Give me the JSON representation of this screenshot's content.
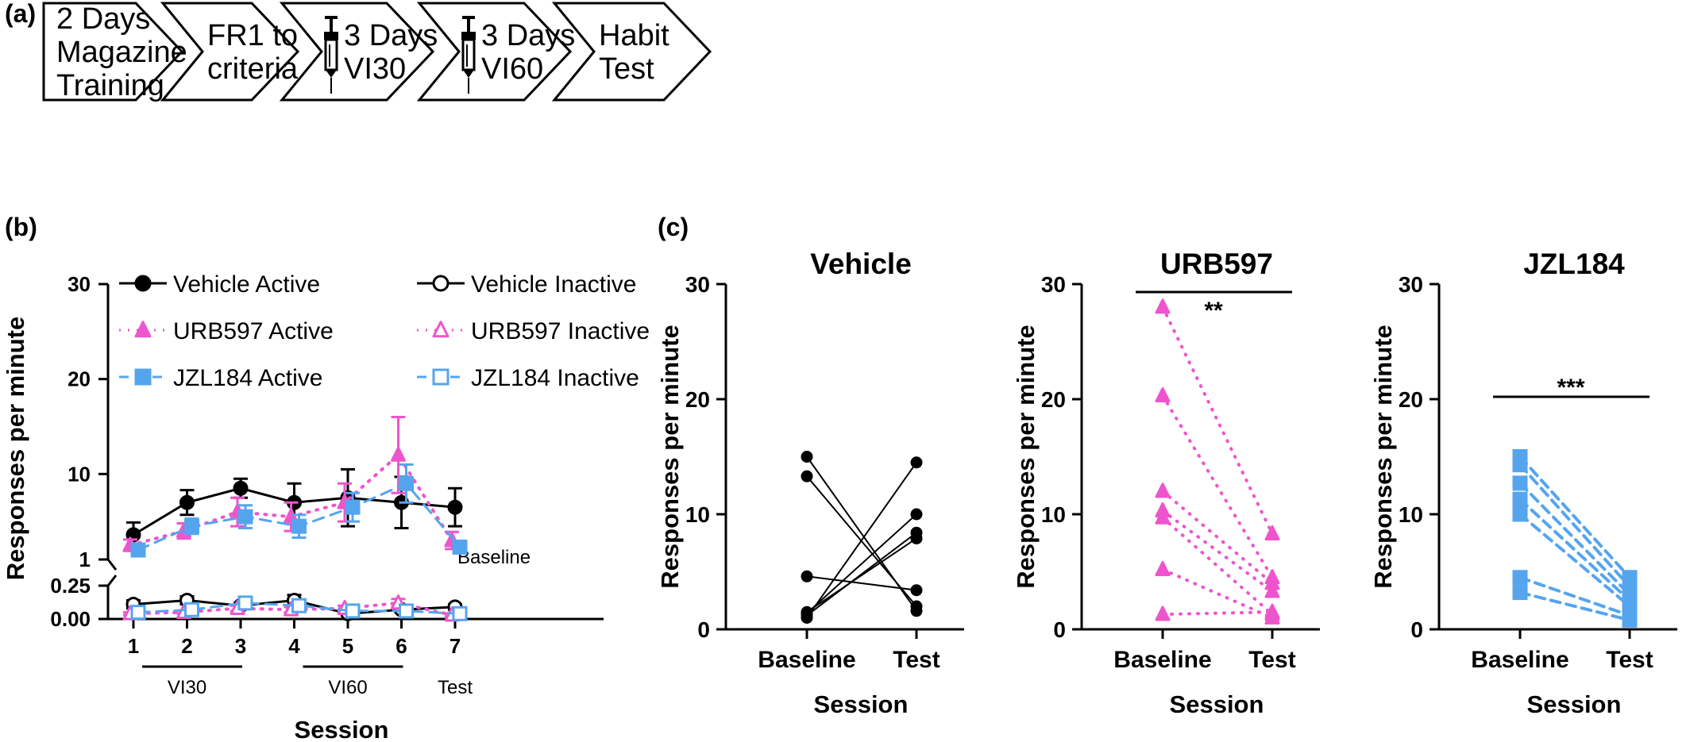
{
  "panels": {
    "a": "(a)",
    "b": "(b)",
    "c": "(c)"
  },
  "colors": {
    "vehicle": "#000000",
    "urb597": "#ee55cc",
    "jzl184": "#55a5ee"
  },
  "timeline": {
    "steps": [
      {
        "lines": [
          "2 Days",
          "Magazine",
          "Training"
        ],
        "syringe": false
      },
      {
        "lines": [
          "FR1 to",
          "criteria"
        ],
        "syringe": false
      },
      {
        "lines": [
          "3 Days",
          "VI30"
        ],
        "syringe": true
      },
      {
        "lines": [
          "3 Days",
          "VI60"
        ],
        "syringe": true
      },
      {
        "lines": [
          "Habit",
          "Test"
        ],
        "syringe": false
      }
    ]
  },
  "chart_data": [
    {
      "id": "b",
      "type": "line",
      "xlabel": "Session",
      "ylabel": "Responses per minute",
      "x": [
        1,
        2,
        3,
        4,
        5,
        6,
        7
      ],
      "x_ticks": [
        "1",
        "2",
        "3",
        "4",
        "5",
        "6",
        "7"
      ],
      "y_axis_upper": {
        "ylim": [
          1,
          30
        ],
        "ticks": [
          "1",
          "10",
          "20",
          "30"
        ]
      },
      "y_axis_lower": {
        "ylim": [
          0,
          0.25
        ],
        "ticks": [
          "0.00",
          "0.25"
        ]
      },
      "phases": [
        {
          "label": "VI30",
          "sessions": [
            1,
            3
          ]
        },
        {
          "label": "VI60",
          "sessions": [
            4,
            6
          ]
        },
        {
          "label": "Test",
          "sessions": [
            7,
            7
          ]
        }
      ],
      "annotation": "Baseline",
      "legend": [
        {
          "name": "Vehicle Active",
          "series": 0
        },
        {
          "name": "Vehicle Inactive",
          "series": 3
        },
        {
          "name": "URB597 Active",
          "series": 1
        },
        {
          "name": "URB597 Inactive",
          "series": 4
        },
        {
          "name": "JZL184 Active",
          "series": 2
        },
        {
          "name": "JZL184 Inactive",
          "series": 5
        }
      ],
      "series": [
        {
          "name": "Vehicle Active",
          "group": "vehicle",
          "marker": "circle",
          "filled": true,
          "axis": "upper",
          "values": [
            3.6,
            7.0,
            8.5,
            7.0,
            7.5,
            7.0,
            6.5
          ],
          "err": [
            1.3,
            1.3,
            1.0,
            2.0,
            3.0,
            2.7,
            2.0
          ]
        },
        {
          "name": "URB597 Active",
          "group": "urb597",
          "marker": "triangle",
          "filled": true,
          "axis": "upper",
          "values": [
            2.5,
            4.0,
            6.0,
            5.5,
            7.0,
            12.0,
            3.0
          ],
          "err": [
            0.6,
            0.8,
            1.5,
            1.5,
            2.0,
            4.0,
            0.9
          ]
        },
        {
          "name": "JZL184 Active",
          "group": "jzl184",
          "marker": "square",
          "filled": true,
          "axis": "upper",
          "values": [
            2.0,
            4.5,
            5.5,
            4.5,
            6.5,
            9.0,
            2.3
          ],
          "err": [
            0.4,
            0.8,
            1.2,
            1.2,
            1.5,
            2.0,
            0.5
          ]
        },
        {
          "name": "Vehicle Inactive",
          "group": "vehicle",
          "marker": "circle",
          "filled": false,
          "axis": "lower",
          "values": [
            0.11,
            0.14,
            0.1,
            0.14,
            0.04,
            0.07,
            0.09
          ],
          "err": [
            0.03,
            0.03,
            0.02,
            0.04,
            0.01,
            0.02,
            0.02
          ]
        },
        {
          "name": "URB597 Inactive",
          "group": "urb597",
          "marker": "triangle",
          "filled": false,
          "axis": "lower",
          "values": [
            0.04,
            0.05,
            0.08,
            0.07,
            0.08,
            0.12,
            0.03
          ],
          "err": [
            0.01,
            0.01,
            0.02,
            0.02,
            0.02,
            0.03,
            0.01
          ]
        },
        {
          "name": "JZL184 Inactive",
          "group": "jzl184",
          "marker": "square",
          "filled": false,
          "axis": "lower",
          "values": [
            0.05,
            0.07,
            0.12,
            0.1,
            0.06,
            0.06,
            0.04
          ],
          "err": [
            0.01,
            0.01,
            0.03,
            0.02,
            0.01,
            0.01,
            0.01
          ]
        }
      ]
    },
    {
      "id": "c-vehicle",
      "type": "line",
      "title": "Vehicle",
      "xlabel": "Session",
      "ylabel": "Responses per minute",
      "categories": [
        "Baseline",
        "Test"
      ],
      "ylim": [
        0,
        30
      ],
      "y_ticks": [
        "0",
        "10",
        "20",
        "30"
      ],
      "group": "vehicle",
      "marker": "circle",
      "dashed": false,
      "significance": "",
      "subjects": [
        [
          15.0,
          1.6
        ],
        [
          13.3,
          2.0
        ],
        [
          4.6,
          3.4
        ],
        [
          1.5,
          7.9
        ],
        [
          1.2,
          8.4
        ],
        [
          1.4,
          10.0
        ],
        [
          1.0,
          14.5
        ]
      ]
    },
    {
      "id": "c-urb597",
      "type": "line",
      "title": "URB597",
      "xlabel": "Session",
      "ylabel": "Responses per minute",
      "categories": [
        "Baseline",
        "Test"
      ],
      "ylim": [
        0,
        30
      ],
      "y_ticks": [
        "0",
        "10",
        "20",
        "30"
      ],
      "group": "urb597",
      "marker": "triangle",
      "dashed": "dotted",
      "significance": "**",
      "subjects": [
        [
          28.0,
          8.3
        ],
        [
          20.3,
          4.5
        ],
        [
          12.0,
          4.0
        ],
        [
          10.3,
          3.3
        ],
        [
          9.7,
          1.3
        ],
        [
          5.2,
          1.0
        ],
        [
          1.3,
          1.5
        ]
      ]
    },
    {
      "id": "c-jzl184",
      "type": "line",
      "title": "JZL184",
      "xlabel": "Session",
      "ylabel": "Responses per minute",
      "categories": [
        "Baseline",
        "Test"
      ],
      "ylim": [
        0,
        30
      ],
      "y_ticks": [
        "0",
        "10",
        "20",
        "30"
      ],
      "group": "jzl184",
      "marker": "square",
      "dashed": "dashed",
      "significance": "***",
      "subjects": [
        [
          15.0,
          4.5
        ],
        [
          14.3,
          3.7
        ],
        [
          12.7,
          3.0
        ],
        [
          11.3,
          2.5
        ],
        [
          10.0,
          2.0
        ],
        [
          4.5,
          1.2
        ],
        [
          3.2,
          0.8
        ]
      ]
    }
  ]
}
